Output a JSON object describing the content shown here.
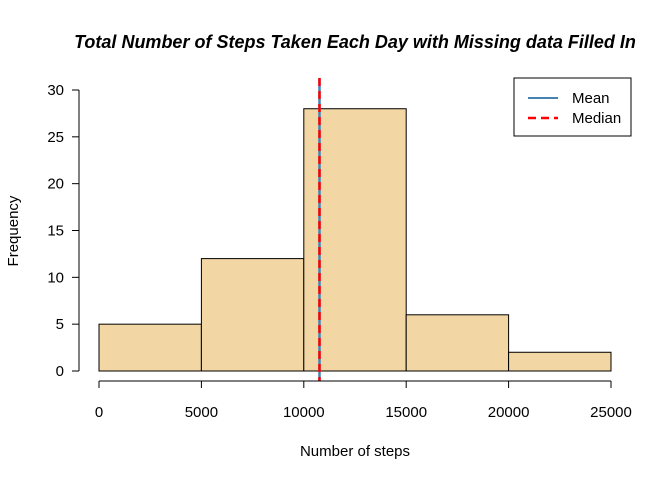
{
  "chart_data": {
    "type": "bar",
    "title": "Total Number of Steps Taken Each Day with Missing data Filled In",
    "xlabel": "Number of steps",
    "ylabel": "Frequency",
    "bins": [
      {
        "from": 0,
        "to": 5000,
        "count": 5
      },
      {
        "from": 5000,
        "to": 10000,
        "count": 12
      },
      {
        "from": 10000,
        "to": 15000,
        "count": 28
      },
      {
        "from": 15000,
        "to": 20000,
        "count": 6
      },
      {
        "from": 20000,
        "to": 25000,
        "count": 2
      }
    ],
    "xlim": [
      0,
      25000
    ],
    "ylim": [
      0,
      30
    ],
    "x_ticks": [
      0,
      5000,
      10000,
      15000,
      20000,
      25000
    ],
    "y_ticks": [
      0,
      5,
      10,
      15,
      20,
      25,
      30
    ],
    "bar_fill": "#f2d6a4",
    "grid": false,
    "mean": 10766,
    "median": 10766,
    "mean_color": "#4682b4",
    "median_color": "#ff0000",
    "legend": {
      "position": "top-right",
      "entries": [
        {
          "label": "Mean",
          "style": "solid",
          "color": "#4682b4"
        },
        {
          "label": "Median",
          "style": "dashed",
          "color": "#ff0000"
        }
      ]
    }
  }
}
